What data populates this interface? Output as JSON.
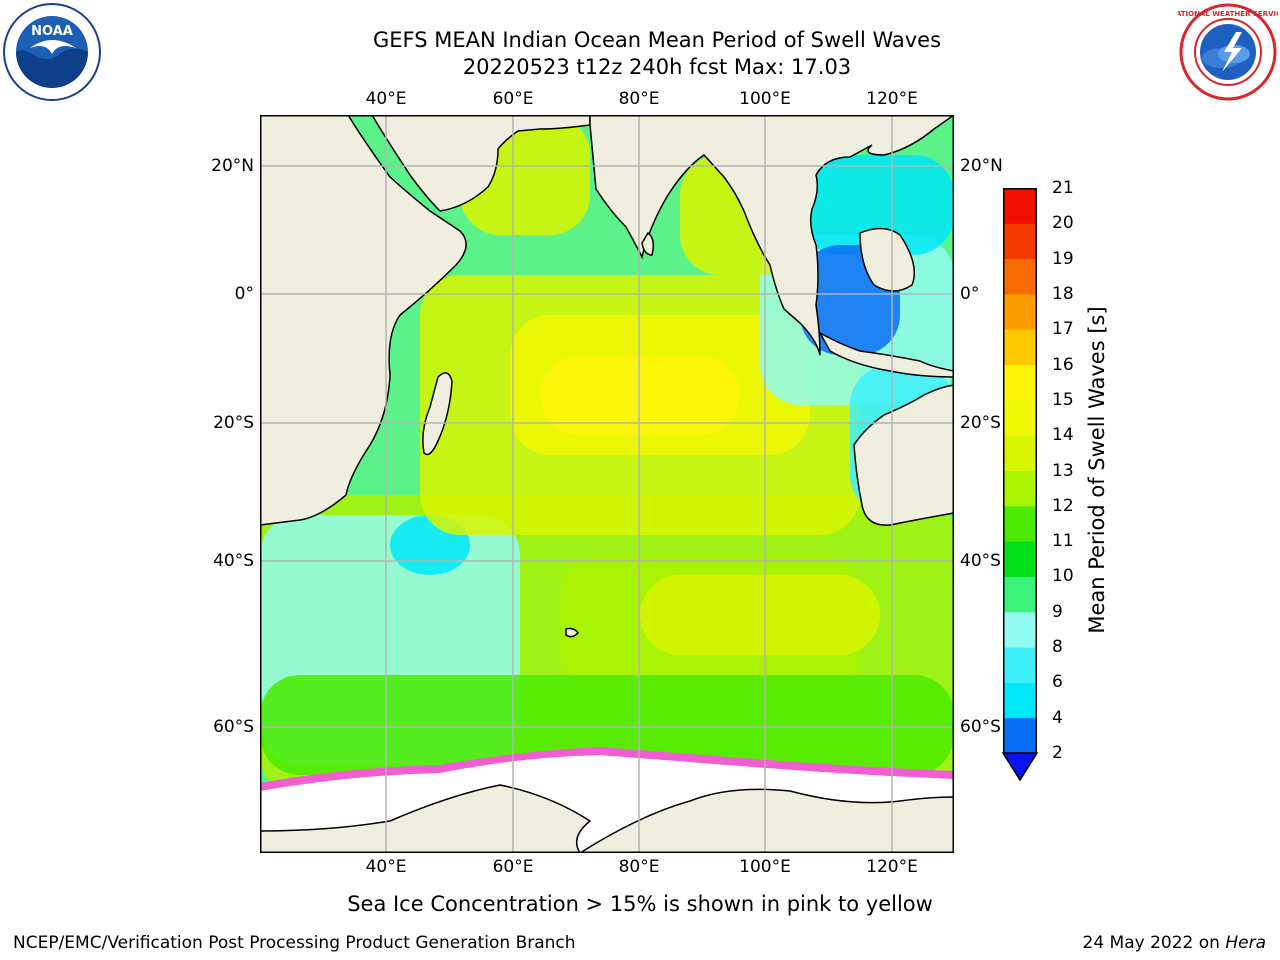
{
  "header": {
    "title_line1": "GEFS MEAN Indian Ocean Mean Period of Swell Waves",
    "title_line2": "20220523 t12z 240h fcst   Max: 17.03"
  },
  "logos": {
    "left": {
      "icon": "noaa-logo",
      "text": "NOAA"
    },
    "right": {
      "icon": "nws-logo",
      "text": "NATIONAL WEATHER SERVICE"
    }
  },
  "map": {
    "longitude_labels": [
      "40°E",
      "60°E",
      "80°E",
      "100°E",
      "120°E"
    ],
    "latitude_labels_left": [
      "20°N",
      "0°",
      "20°S",
      "40°S",
      "60°S"
    ],
    "latitude_labels_right": [
      "20°N",
      "0°",
      "20°S",
      "40°S",
      "60°S"
    ],
    "colors": {
      "land": "#efeedf",
      "sea_ice": "#ffffff",
      "grid": "#b4b4b4",
      "coastline": "#000000"
    }
  },
  "colorbar": {
    "label": "Mean Period of Swell Waves [s]",
    "ticks": [
      "2",
      "4",
      "6",
      "8",
      "9",
      "10",
      "11",
      "12",
      "13",
      "14",
      "15",
      "16",
      "17",
      "18",
      "19",
      "20",
      "21"
    ],
    "bin_colors": [
      "#0a6df7",
      "#00e8f8",
      "#3ff0f8",
      "#92fbf0",
      "#3bf27a",
      "#00e11c",
      "#4bea00",
      "#a9f200",
      "#d8f600",
      "#f0f804",
      "#fef40a",
      "#fec800",
      "#fd9e00",
      "#f96a00",
      "#f53a00",
      "#f20e00"
    ],
    "extend_color": "#0a14ee"
  },
  "notes": {
    "sea_ice": "Sea Ice Concentration > 15% is shown in pink to yellow"
  },
  "footer": {
    "left": "NCEP/EMC/Verification Post Processing Product Generation Branch",
    "right_date": "24 May 2022 on ",
    "right_machine": "Hera"
  }
}
